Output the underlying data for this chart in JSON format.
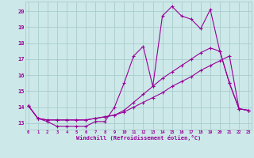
{
  "xlabel": "Windchill (Refroidissement éolien,°C)",
  "background_color": "#cce8e8",
  "grid_color": "#aacccc",
  "line_color": "#990099",
  "x_ticks": [
    0,
    1,
    2,
    3,
    4,
    5,
    6,
    7,
    8,
    9,
    10,
    11,
    12,
    13,
    14,
    15,
    16,
    17,
    18,
    19,
    20,
    21,
    22,
    23
  ],
  "y_ticks": [
    13,
    14,
    15,
    16,
    17,
    18,
    19,
    20
  ],
  "xlim": [
    -0.3,
    23.3
  ],
  "ylim": [
    12.6,
    20.6
  ],
  "series1_x": [
    0,
    1,
    2,
    3,
    4,
    5,
    6,
    7,
    8,
    9,
    10,
    11,
    12,
    13,
    14,
    15,
    16,
    17,
    18,
    19,
    20,
    21,
    22,
    23
  ],
  "series1_y": [
    14.1,
    13.3,
    13.1,
    12.8,
    12.8,
    12.8,
    12.8,
    13.1,
    13.1,
    14.0,
    15.5,
    17.2,
    17.8,
    15.3,
    19.7,
    20.3,
    19.7,
    19.5,
    18.9,
    20.1,
    17.5,
    15.5,
    13.9,
    13.8
  ],
  "series2_x": [
    0,
    1,
    2,
    3,
    4,
    5,
    6,
    7,
    8,
    9,
    10,
    11,
    12,
    13,
    14,
    15,
    16,
    17,
    18,
    19,
    20,
    21,
    22,
    23
  ],
  "series2_y": [
    14.1,
    13.3,
    13.2,
    13.2,
    13.2,
    13.2,
    13.2,
    13.3,
    13.4,
    13.5,
    13.7,
    14.0,
    14.3,
    14.6,
    14.9,
    15.3,
    15.6,
    15.9,
    16.3,
    16.6,
    16.9,
    17.2,
    13.9,
    13.8
  ],
  "series3_x": [
    0,
    1,
    2,
    3,
    4,
    5,
    6,
    7,
    8,
    9,
    10,
    11,
    12,
    13,
    14,
    15,
    16,
    17,
    18,
    19,
    20,
    21,
    22,
    23
  ],
  "series3_y": [
    14.1,
    13.3,
    13.2,
    13.2,
    13.2,
    13.2,
    13.2,
    13.3,
    13.4,
    13.5,
    13.8,
    14.3,
    14.8,
    15.3,
    15.8,
    16.2,
    16.6,
    17.0,
    17.4,
    17.7,
    17.5,
    15.5,
    13.9,
    13.8
  ]
}
